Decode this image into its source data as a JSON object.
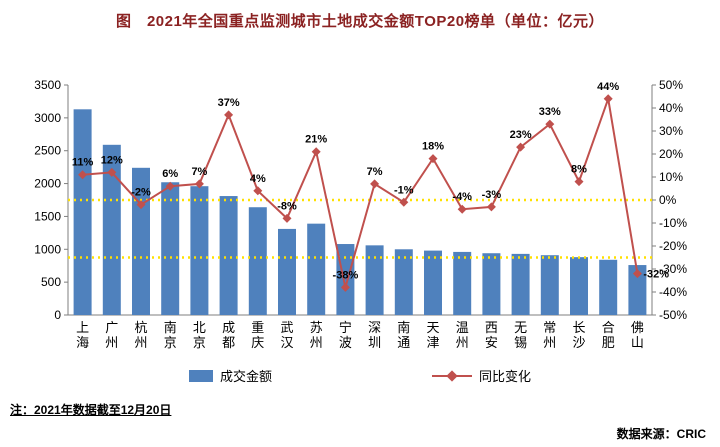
{
  "title": "图　2021年全国重点监测城市土地成交金额TOP20榜单（单位：亿元）",
  "note": "注：2021年数据截至12月20日",
  "source": "数据来源：CRIC",
  "legend": {
    "bar_label": "成交金额",
    "line_label": "同比变化"
  },
  "colors": {
    "bar": "#4f81bd",
    "line": "#c0504d",
    "reference": "#ffe100",
    "axis": "#7f7f7f",
    "text": "#000000",
    "title": "#8b2222"
  },
  "chart_data": {
    "type": "bar+line",
    "title": "2021年全国重点监测城市土地成交金额TOP20榜单（单位：亿元）",
    "categories": [
      "上海",
      "广州",
      "杭州",
      "南京",
      "北京",
      "成都",
      "重庆",
      "武汉",
      "苏州",
      "宁波",
      "深圳",
      "南通",
      "天津",
      "温州",
      "西安",
      "无锡",
      "常州",
      "长沙",
      "合肥",
      "佛山"
    ],
    "series": [
      {
        "name": "成交金额",
        "type": "bar",
        "axis": "left",
        "values": [
          3130,
          2590,
          2240,
          2020,
          1960,
          1810,
          1640,
          1310,
          1390,
          1080,
          1060,
          1000,
          980,
          960,
          940,
          930,
          910,
          880,
          840,
          760
        ]
      },
      {
        "name": "同比变化",
        "type": "line",
        "axis": "right",
        "values": [
          11,
          12,
          -2,
          6,
          7,
          37,
          4,
          -8,
          21,
          -38,
          7,
          -1,
          18,
          -4,
          -3,
          23,
          33,
          8,
          44,
          -32
        ],
        "labels": [
          "11%",
          "12%",
          "-2%",
          "6%",
          "7%",
          "37%",
          "4%",
          "-8%",
          "21%",
          "-38%",
          "7%",
          "-1%",
          "18%",
          "-4%",
          "-3%",
          "23%",
          "33%",
          "8%",
          "44%",
          "-32%"
        ],
        "label_sides": [
          "above",
          "above",
          "above",
          "above",
          "above",
          "above",
          "above",
          "above",
          "above",
          "above",
          "above",
          "above",
          "above",
          "above",
          "above",
          "above",
          "above",
          "above",
          "above",
          "right"
        ]
      }
    ],
    "left_axis": {
      "min": 0,
      "max": 3500,
      "tick_values": [
        3500,
        3000,
        2500,
        2000,
        1500,
        1000,
        500,
        0
      ],
      "tick_labels": [
        "3500",
        "3000",
        "2500",
        "2000",
        "1500",
        "1000",
        "500",
        "0"
      ]
    },
    "right_axis": {
      "min": -50,
      "max": 50,
      "tick_values": [
        50,
        40,
        30,
        20,
        10,
        0,
        -10,
        -20,
        -30,
        -40,
        -50
      ],
      "tick_labels": [
        "50%",
        "40%",
        "30%",
        "20%",
        "10%",
        "0%",
        "-10%",
        "-20%",
        "-30%",
        "-40%",
        "-50%"
      ]
    },
    "reference_lines": [
      {
        "axis": "right",
        "value": 0
      },
      {
        "axis": "right",
        "value": -25
      }
    ],
    "legend_position": "bottom",
    "grid": false
  }
}
